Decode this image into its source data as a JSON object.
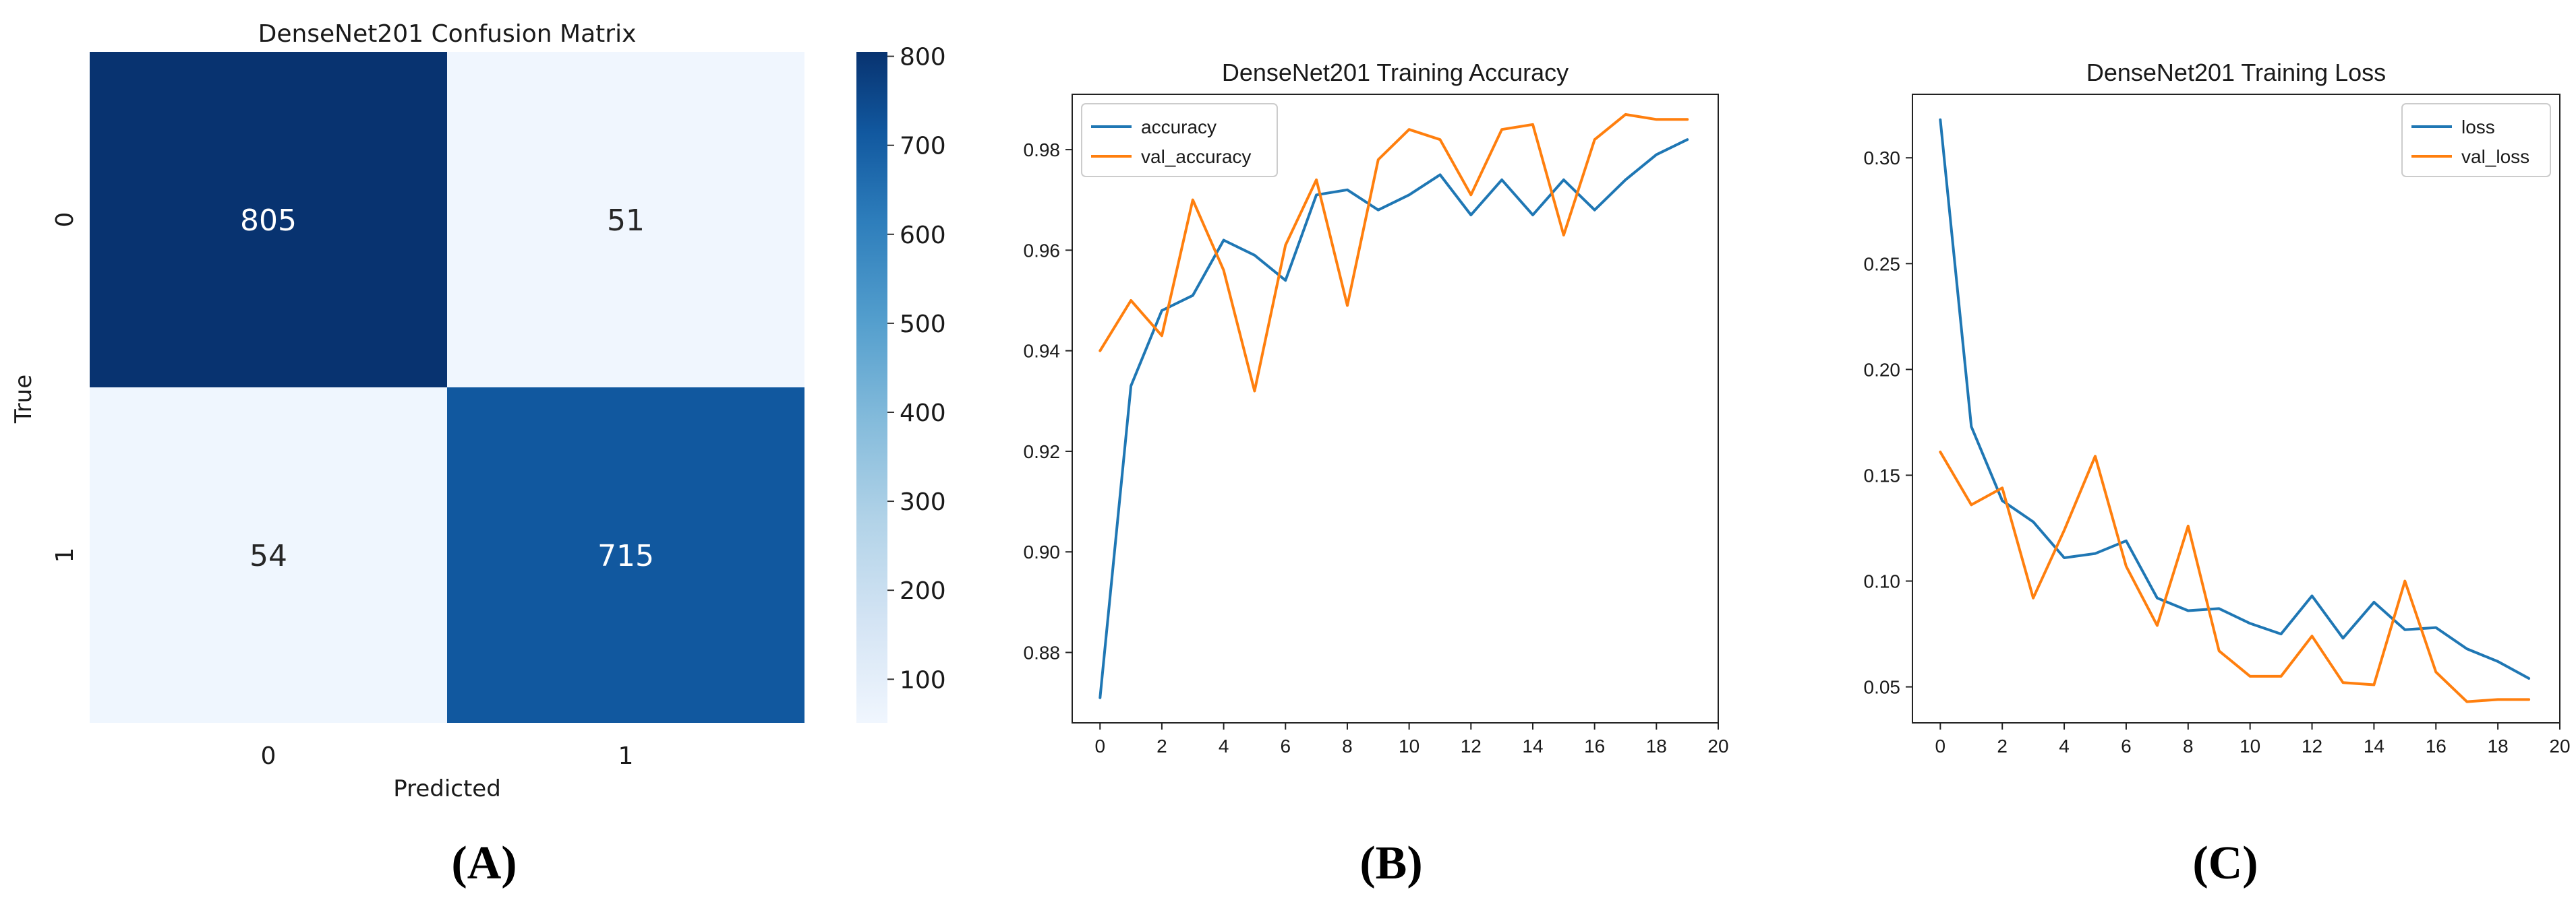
{
  "panels": [
    {
      "letter": "(A)"
    },
    {
      "letter": "(B)"
    },
    {
      "letter": "(C)"
    }
  ],
  "chart_data": [
    {
      "type": "heatmap",
      "title": "DenseNet201 Confusion Matrix",
      "xlabel": "Predicted",
      "ylabel": "True",
      "x_categories": [
        "0",
        "1"
      ],
      "y_categories": [
        "0",
        "1"
      ],
      "values": [
        [
          805,
          51
        ],
        [
          54,
          715
        ]
      ],
      "colormap": "Blues",
      "colorbar": {
        "ticks": [
          100,
          200,
          300,
          400,
          500,
          600,
          700,
          800
        ],
        "range": [
          51,
          805
        ]
      }
    },
    {
      "type": "line",
      "title": "DenseNet201 Training Accuracy",
      "xlabel": "",
      "ylabel": "",
      "x": [
        0,
        1,
        2,
        3,
        4,
        5,
        6,
        7,
        8,
        9,
        10,
        11,
        12,
        13,
        14,
        15,
        16,
        17,
        18,
        19
      ],
      "xlim": [
        -0.9,
        20
      ],
      "ylim": [
        0.866,
        0.991
      ],
      "xticks": [
        0,
        2,
        4,
        6,
        8,
        10,
        12,
        14,
        16,
        18,
        20
      ],
      "yticks": [
        "0.88",
        "0.90",
        "0.92",
        "0.94",
        "0.96",
        "0.98"
      ],
      "legend": "top-left",
      "series": [
        {
          "name": "accuracy",
          "color": "#1f77b4",
          "values": [
            0.871,
            0.933,
            0.948,
            0.951,
            0.962,
            0.959,
            0.954,
            0.971,
            0.972,
            0.968,
            0.971,
            0.975,
            0.967,
            0.974,
            0.967,
            0.974,
            0.968,
            0.974,
            0.979,
            0.982
          ]
        },
        {
          "name": "val_accuracy",
          "color": "#ff7f0e",
          "values": [
            0.94,
            0.95,
            0.943,
            0.97,
            0.956,
            0.932,
            0.961,
            0.974,
            0.949,
            0.978,
            0.984,
            0.982,
            0.971,
            0.984,
            0.985,
            0.963,
            0.982,
            0.987,
            0.986,
            0.986
          ]
        }
      ]
    },
    {
      "type": "line",
      "title": "DenseNet201 Training Loss",
      "xlabel": "",
      "ylabel": "",
      "x": [
        0,
        1,
        2,
        3,
        4,
        5,
        6,
        7,
        8,
        9,
        10,
        11,
        12,
        13,
        14,
        15,
        16,
        17,
        18,
        19
      ],
      "xlim": [
        -0.9,
        20
      ],
      "ylim": [
        0.033,
        0.33
      ],
      "xticks": [
        0,
        2,
        4,
        6,
        8,
        10,
        12,
        14,
        16,
        18,
        20
      ],
      "yticks": [
        "0.05",
        "0.10",
        "0.15",
        "0.20",
        "0.25",
        "0.30"
      ],
      "legend": "top-right",
      "series": [
        {
          "name": "loss",
          "color": "#1f77b4",
          "values": [
            0.318,
            0.173,
            0.138,
            0.128,
            0.111,
            0.113,
            0.119,
            0.092,
            0.086,
            0.087,
            0.08,
            0.075,
            0.093,
            0.073,
            0.09,
            0.077,
            0.078,
            0.068,
            0.062,
            0.054
          ]
        },
        {
          "name": "val_loss",
          "color": "#ff7f0e",
          "values": [
            0.161,
            0.136,
            0.144,
            0.092,
            0.124,
            0.159,
            0.107,
            0.079,
            0.126,
            0.067,
            0.055,
            0.055,
            0.074,
            0.052,
            0.051,
            0.1,
            0.057,
            0.043,
            0.044,
            0.044
          ]
        }
      ]
    }
  ]
}
